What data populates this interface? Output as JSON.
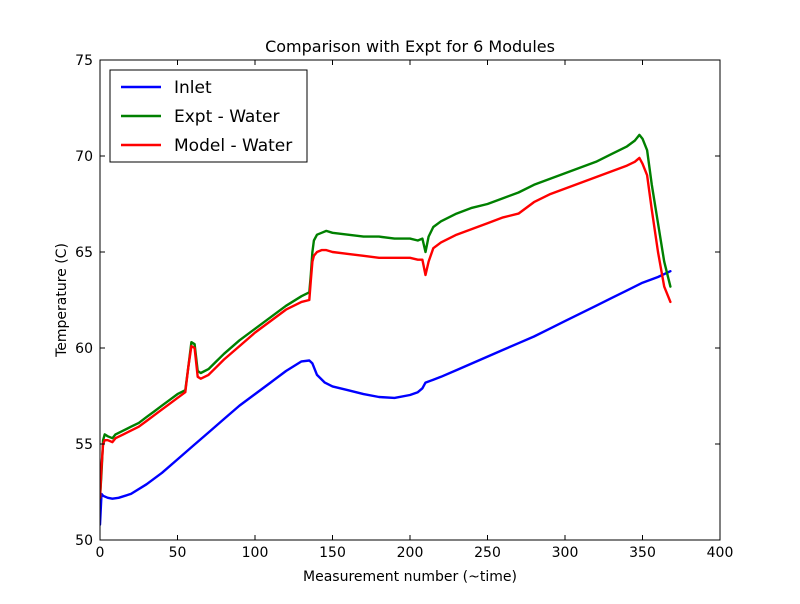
{
  "chart_data": {
    "type": "line",
    "title": "Comparison with Expt for 6 Modules",
    "xlabel": "Measurement number (~time)",
    "ylabel": "Temperature (C)",
    "xlim": [
      0,
      400
    ],
    "ylim": [
      50,
      75
    ],
    "xticks": [
      0,
      50,
      100,
      150,
      200,
      250,
      300,
      350,
      400
    ],
    "yticks": [
      50,
      55,
      60,
      65,
      70,
      75
    ],
    "xtick_labels": [
      "0",
      "50",
      "100",
      "150",
      "200",
      "250",
      "300",
      "350",
      "400"
    ],
    "ytick_labels": [
      "50",
      "55",
      "60",
      "65",
      "70",
      "75"
    ],
    "grid": false,
    "legend_position": "top-left",
    "series": [
      {
        "name": "Inlet",
        "color": "#0000ff",
        "x": [
          0,
          1,
          2,
          5,
          8,
          12,
          20,
          30,
          40,
          50,
          60,
          70,
          80,
          90,
          100,
          110,
          120,
          130,
          135,
          137,
          140,
          145,
          150,
          160,
          170,
          180,
          190,
          200,
          205,
          208,
          210,
          215,
          220,
          230,
          240,
          250,
          260,
          270,
          280,
          290,
          300,
          310,
          320,
          330,
          340,
          350,
          360,
          368
        ],
        "y": [
          50.8,
          52.4,
          52.3,
          52.2,
          52.15,
          52.2,
          52.4,
          52.9,
          53.5,
          54.2,
          54.9,
          55.6,
          56.3,
          57.0,
          57.6,
          58.2,
          58.8,
          59.3,
          59.35,
          59.2,
          58.6,
          58.2,
          58.0,
          57.8,
          57.6,
          57.45,
          57.4,
          57.55,
          57.7,
          57.9,
          58.2,
          58.35,
          58.5,
          58.85,
          59.2,
          59.55,
          59.9,
          60.25,
          60.6,
          61.0,
          61.4,
          61.8,
          62.2,
          62.6,
          63.0,
          63.4,
          63.7,
          64.0
        ]
      },
      {
        "name": "Expt - Water",
        "color": "#008000",
        "x": [
          0,
          1,
          2,
          3,
          5,
          8,
          10,
          15,
          20,
          25,
          30,
          35,
          40,
          45,
          50,
          55,
          57,
          59,
          61,
          63,
          65,
          70,
          75,
          80,
          90,
          100,
          110,
          120,
          130,
          135,
          136,
          137,
          138,
          140,
          143,
          146,
          150,
          160,
          170,
          180,
          190,
          200,
          205,
          208,
          210,
          212,
          215,
          220,
          230,
          240,
          250,
          260,
          270,
          280,
          290,
          300,
          310,
          320,
          330,
          340,
          345,
          348,
          350,
          353,
          356,
          360,
          364,
          368
        ],
        "y": [
          52.2,
          53.5,
          55.2,
          55.5,
          55.4,
          55.3,
          55.5,
          55.7,
          55.9,
          56.1,
          56.4,
          56.7,
          57.0,
          57.3,
          57.6,
          57.8,
          59.0,
          60.3,
          60.2,
          58.8,
          58.7,
          58.9,
          59.3,
          59.7,
          60.4,
          61.0,
          61.6,
          62.2,
          62.7,
          62.9,
          63.8,
          65.0,
          65.6,
          65.9,
          66.0,
          66.1,
          66.0,
          65.9,
          65.8,
          65.8,
          65.7,
          65.7,
          65.6,
          65.7,
          65.0,
          65.8,
          66.3,
          66.6,
          67.0,
          67.3,
          67.5,
          67.8,
          68.1,
          68.5,
          68.8,
          69.1,
          69.4,
          69.7,
          70.1,
          70.5,
          70.8,
          71.1,
          70.9,
          70.3,
          68.5,
          66.5,
          64.5,
          63.2
        ]
      },
      {
        "name": "Model - Water",
        "color": "#ff0000",
        "x": [
          0,
          1,
          2,
          3,
          5,
          8,
          10,
          15,
          20,
          25,
          30,
          35,
          40,
          45,
          50,
          55,
          57,
          59,
          61,
          63,
          65,
          70,
          75,
          80,
          90,
          100,
          110,
          120,
          130,
          135,
          136,
          137,
          138,
          140,
          143,
          146,
          150,
          160,
          170,
          180,
          190,
          200,
          205,
          208,
          210,
          212,
          215,
          220,
          230,
          240,
          250,
          260,
          270,
          280,
          290,
          300,
          310,
          320,
          330,
          340,
          345,
          348,
          350,
          353,
          356,
          360,
          364,
          368
        ],
        "y": [
          52.2,
          53.8,
          55.0,
          55.2,
          55.2,
          55.1,
          55.3,
          55.5,
          55.7,
          55.9,
          56.2,
          56.5,
          56.8,
          57.1,
          57.4,
          57.7,
          59.0,
          60.1,
          60.0,
          58.5,
          58.4,
          58.6,
          59.0,
          59.4,
          60.1,
          60.8,
          61.4,
          62.0,
          62.4,
          62.5,
          63.5,
          64.5,
          64.8,
          65.0,
          65.1,
          65.1,
          65.0,
          64.9,
          64.8,
          64.7,
          64.7,
          64.7,
          64.6,
          64.6,
          63.8,
          64.5,
          65.2,
          65.5,
          65.9,
          66.2,
          66.5,
          66.8,
          67.0,
          67.6,
          68.0,
          68.3,
          68.6,
          68.9,
          69.2,
          69.5,
          69.7,
          69.9,
          69.6,
          69.0,
          67.2,
          65.0,
          63.2,
          62.4
        ]
      }
    ]
  }
}
